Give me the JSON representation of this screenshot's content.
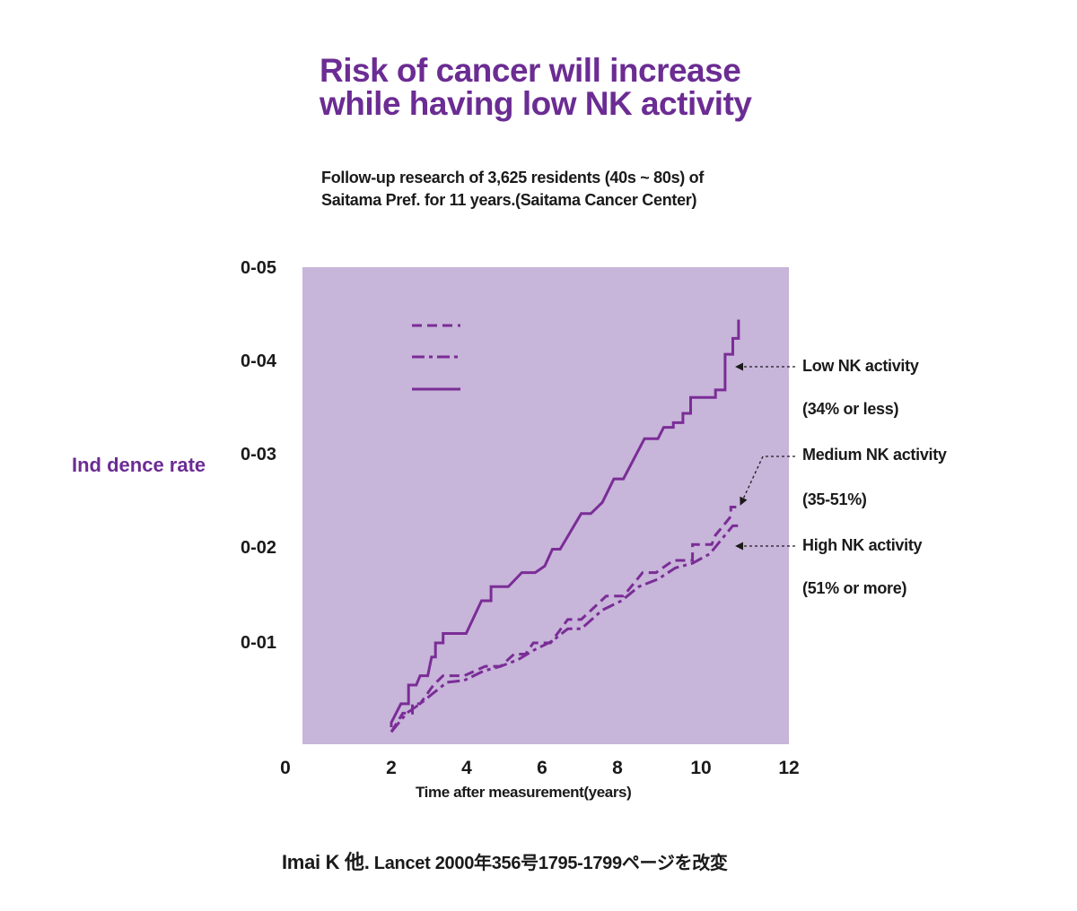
{
  "title_lines": [
    "Risk of cancer will increase",
    "while having low NK activity"
  ],
  "subtitle_lines": [
    "Follow-up research of 3,625 residents (40s ~ 80s) of",
    "Saitama Pref. for 11 years.(Saitama Cancer Center)"
  ],
  "source_prefix": "Imai K 他.",
  "source_rest": " Lancet 2000年356号1795-1799ページを改変",
  "colors": {
    "plot_bg": "#c8b5da",
    "line": "#7a2d96",
    "title": "#6b2c93"
  },
  "chart_data": {
    "type": "line",
    "title": "Risk of cancer will increase while having low NK activity",
    "xlabel": "Time after measurement(years)",
    "ylabel": "Ind dence rate",
    "xlim": [
      0,
      12
    ],
    "ylim": [
      0,
      0.051
    ],
    "x_ticks": [
      "0",
      "2",
      "4",
      "6",
      "8",
      "10",
      "12"
    ],
    "y_ticks": [
      "0-01",
      "0-02",
      "0-03",
      "0-04",
      "0-05"
    ],
    "y_tick_values": [
      0.011,
      0.021,
      0.031,
      0.041,
      0.051
    ],
    "series": [
      {
        "name": "Low NK activity",
        "note": "(34% or less)",
        "style": "solid",
        "points": [
          [
            2.0,
            0.002
          ],
          [
            2.0,
            0.0025
          ],
          [
            2.25,
            0.0045
          ],
          [
            2.45,
            0.0045
          ],
          [
            2.45,
            0.0065
          ],
          [
            2.65,
            0.0065
          ],
          [
            2.75,
            0.0075
          ],
          [
            2.95,
            0.0075
          ],
          [
            3.05,
            0.0095
          ],
          [
            3.15,
            0.0095
          ],
          [
            3.15,
            0.011
          ],
          [
            3.35,
            0.011
          ],
          [
            3.35,
            0.012
          ],
          [
            3.95,
            0.012
          ],
          [
            4.35,
            0.0155
          ],
          [
            4.6,
            0.0155
          ],
          [
            4.6,
            0.017
          ],
          [
            5.05,
            0.017
          ],
          [
            5.4,
            0.0185
          ],
          [
            5.75,
            0.0185
          ],
          [
            6.0,
            0.0192
          ],
          [
            6.2,
            0.021
          ],
          [
            6.4,
            0.021
          ],
          [
            6.95,
            0.0248
          ],
          [
            7.2,
            0.0248
          ],
          [
            7.5,
            0.026
          ],
          [
            7.8,
            0.0285
          ],
          [
            8.05,
            0.0285
          ],
          [
            8.6,
            0.0328
          ],
          [
            8.95,
            0.0328
          ],
          [
            9.1,
            0.034
          ],
          [
            9.35,
            0.034
          ],
          [
            9.35,
            0.0345
          ],
          [
            9.6,
            0.0345
          ],
          [
            9.6,
            0.0355
          ],
          [
            9.8,
            0.0355
          ],
          [
            9.8,
            0.0372
          ],
          [
            10.45,
            0.0372
          ],
          [
            10.45,
            0.038
          ],
          [
            10.7,
            0.038
          ],
          [
            10.7,
            0.0418
          ],
          [
            10.9,
            0.0418
          ],
          [
            10.9,
            0.0435
          ],
          [
            11.05,
            0.0435
          ],
          [
            11.05,
            0.0455
          ]
        ]
      },
      {
        "name": "Medium NK activity",
        "note": "(35-51%)",
        "style": "dash",
        "points": [
          [
            2.0,
            0.0015
          ],
          [
            2.3,
            0.0035
          ],
          [
            2.55,
            0.0035
          ],
          [
            2.55,
            0.0045
          ],
          [
            2.75,
            0.0045
          ],
          [
            3.1,
            0.0065
          ],
          [
            3.35,
            0.0075
          ],
          [
            3.9,
            0.0075
          ],
          [
            4.45,
            0.0085
          ],
          [
            4.85,
            0.0085
          ],
          [
            5.2,
            0.0098
          ],
          [
            5.5,
            0.0098
          ],
          [
            5.7,
            0.011
          ],
          [
            6.15,
            0.011
          ],
          [
            6.6,
            0.0135
          ],
          [
            6.95,
            0.0135
          ],
          [
            7.6,
            0.016
          ],
          [
            8.05,
            0.016
          ],
          [
            8.55,
            0.0185
          ],
          [
            8.9,
            0.0185
          ],
          [
            9.35,
            0.0198
          ],
          [
            9.85,
            0.0198
          ],
          [
            9.85,
            0.0215
          ],
          [
            10.35,
            0.0215
          ],
          [
            10.45,
            0.0225
          ],
          [
            10.65,
            0.0235
          ],
          [
            10.85,
            0.0245
          ],
          [
            10.85,
            0.0255
          ],
          [
            11.0,
            0.0255
          ]
        ]
      },
      {
        "name": "High NK activity",
        "note": "(51% or more)",
        "style": "dashdot",
        "points": [
          [
            2.0,
            0.0015
          ],
          [
            2.4,
            0.0035
          ],
          [
            2.75,
            0.0045
          ],
          [
            3.05,
            0.0055
          ],
          [
            3.45,
            0.0068
          ],
          [
            3.9,
            0.007
          ],
          [
            4.4,
            0.008
          ],
          [
            4.85,
            0.0085
          ],
          [
            5.3,
            0.0092
          ],
          [
            5.7,
            0.0102
          ],
          [
            6.2,
            0.0112
          ],
          [
            6.6,
            0.0125
          ],
          [
            6.95,
            0.0125
          ],
          [
            7.5,
            0.0145
          ],
          [
            8.0,
            0.0155
          ],
          [
            8.45,
            0.017
          ],
          [
            8.95,
            0.0178
          ],
          [
            9.4,
            0.019
          ],
          [
            9.85,
            0.0195
          ],
          [
            10.3,
            0.0205
          ],
          [
            10.6,
            0.022
          ],
          [
            10.9,
            0.0235
          ],
          [
            11.05,
            0.0235
          ]
        ]
      }
    ],
    "annotations": [
      {
        "label": "Low NK activity",
        "note": "(34% or less)"
      },
      {
        "label": "Medium NK activity",
        "note": "(35-51%)"
      },
      {
        "label": "High NK activity",
        "note": "(51% or more)"
      }
    ]
  }
}
